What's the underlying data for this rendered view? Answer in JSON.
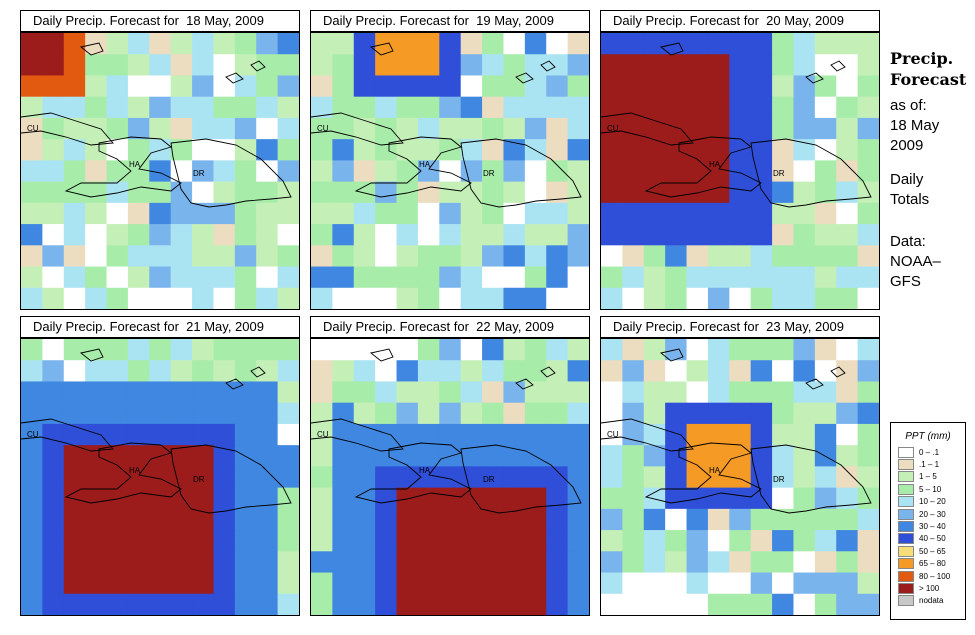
{
  "colors": {
    "land_outline": "#000000",
    "classes": [
      "#ffffff",
      "#ecdcc0",
      "#c4f0b8",
      "#a8ecaa",
      "#aae4f2",
      "#7ab4ec",
      "#3f87e0",
      "#2f4fd8",
      "#f5de7a",
      "#f59a24",
      "#e25a10",
      "#9c1c1c",
      "#c8c8c8"
    ]
  },
  "panels": [
    {
      "title": "Daily Precip. Forecast for  18 May, 2009",
      "seed": 11,
      "hot": [
        {
          "c": 0,
          "r": 0,
          "rad": 1,
          "cls": [
            12,
            11,
            10
          ]
        }
      ]
    },
    {
      "title": "Daily Precip. Forecast for  19 May, 2009",
      "seed": 27,
      "hot": [
        {
          "c": 4,
          "r": 0,
          "rad": 1,
          "cls": [
            9,
            8,
            7
          ]
        }
      ]
    },
    {
      "title": "Daily Precip. Forecast for  20 May, 2009",
      "seed": 43,
      "hot": [
        {
          "c": 2,
          "r": 4,
          "rad": 3,
          "cls": [
            12,
            11,
            10,
            9,
            8,
            7
          ]
        }
      ]
    },
    {
      "title": "Daily Precip. Forecast for  21 May, 2009",
      "seed": 59,
      "hot": [
        {
          "c": 5,
          "r": 8,
          "rad": 3,
          "cls": [
            12,
            11,
            10,
            9,
            8,
            7,
            6
          ]
        }
      ]
    },
    {
      "title": "Daily Precip. Forecast for  22 May, 2009",
      "seed": 71,
      "hot": [
        {
          "c": 7,
          "r": 10,
          "rad": 3,
          "cls": [
            12,
            11,
            10,
            9,
            8,
            7,
            6
          ]
        }
      ]
    },
    {
      "title": "Daily Precip. Forecast for  23 May, 2009",
      "seed": 89,
      "hot": [
        {
          "c": 5,
          "r": 5,
          "rad": 1,
          "cls": [
            9,
            8,
            7
          ]
        }
      ]
    }
  ],
  "map_labels": {
    "cuba": "CU",
    "haiti": "HA",
    "dr": "DR"
  },
  "side": {
    "title_line1": "Precip.",
    "title_line2": "Forecast",
    "asof": "as of:",
    "date1": "18 May",
    "date2": "2009",
    "daily": "Daily",
    "totals": "Totals",
    "data": "Data:",
    "source1": "NOAA–",
    "source2": "GFS"
  },
  "legend": {
    "title": "PPT (mm)",
    "items": [
      {
        "label": "0 – .1",
        "color": "#ffffff"
      },
      {
        "label": ".1 – 1",
        "color": "#ecdcc0"
      },
      {
        "label": "1 – 5",
        "color": "#c4f0b8"
      },
      {
        "label": "5 – 10",
        "color": "#a8ecaa"
      },
      {
        "label": "10 – 20",
        "color": "#aae4f2"
      },
      {
        "label": "20 – 30",
        "color": "#7ab4ec"
      },
      {
        "label": "30 – 40",
        "color": "#3f87e0"
      },
      {
        "label": "40 – 50",
        "color": "#2f4fd8"
      },
      {
        "label": "50 – 65",
        "color": "#f5de7a"
      },
      {
        "label": "65 – 80",
        "color": "#f59a24"
      },
      {
        "label": "80 – 100",
        "color": "#e25a10"
      },
      {
        "label": "> 100",
        "color": "#9c1c1c"
      },
      {
        "label": "nodata",
        "color": "#c8c8c8"
      }
    ]
  }
}
